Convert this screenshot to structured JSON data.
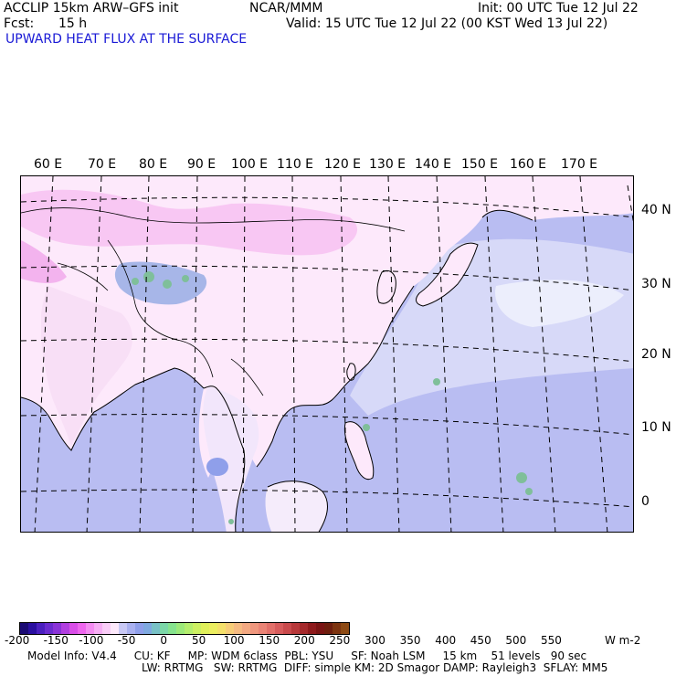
{
  "header": {
    "model": "ACCLIP 15km ARW–GFS init",
    "org": "NCAR/MMM",
    "init": "Init: 00 UTC Tue 12 Jul 22",
    "fcst_label": "Fcst:",
    "fcst_value": "15 h",
    "valid": "Valid: 15 UTC Tue 12 Jul 22 (00 KST Wed 13 Jul 22)",
    "field_title": "UPWARD HEAT FLUX AT THE SURFACE"
  },
  "colors": {
    "title_blue": "#1a1ad6",
    "ocean": "#b9bdf2",
    "land_light": "#fde9fb",
    "land_pink": "#f8c7f3",
    "green_patch": "#7fbf9a",
    "grid_dash": "#000000"
  },
  "map": {
    "lon_labels": [
      "60 E",
      "70 E",
      "80 E",
      "90 E",
      "100 E",
      "110 E",
      "120 E",
      "130 E",
      "140 E",
      "150 E",
      "160 E",
      "170 E"
    ],
    "lat_labels": [
      "40 N",
      "30 N",
      "20 N",
      "10 N",
      "0"
    ]
  },
  "colorbar": {
    "colors": [
      "#1a0a73",
      "#2a0fa0",
      "#4a1fbf",
      "#6a2bd0",
      "#8a33d8",
      "#b13fe0",
      "#d94ee8",
      "#ee66ee",
      "#f48cf2",
      "#f7aef5",
      "#facdf8",
      "#fde9fb",
      "#c9c9f5",
      "#aab1f0",
      "#8f9fea",
      "#7fa9e0",
      "#78c1c6",
      "#7bd7a8",
      "#86e38e",
      "#9ce97a",
      "#b5ee6e",
      "#cdf062",
      "#e0f05a",
      "#ecee60",
      "#f4e06a",
      "#f7cd78",
      "#f6bb82",
      "#f3a982",
      "#ef977e",
      "#ea8476",
      "#e2706a",
      "#d75c5c",
      "#c94a4c",
      "#b8393b",
      "#a4292b",
      "#8e1a1c",
      "#7a1414",
      "#6e1e0e",
      "#7d3410",
      "#8d4a14"
    ],
    "ticks": [
      "-200",
      "-150",
      "-100",
      "-50",
      "0",
      "50",
      "100",
      "150",
      "200",
      "250",
      "300",
      "350",
      "400",
      "450",
      "500",
      "550"
    ],
    "units": "W m-2"
  },
  "footer": {
    "line1": "Model Info: V4.4     CU: KF     MP: WDM 6class  PBL: YSU     SF: Noah LSM     15 km    51 levels   90 sec",
    "line2": "LW: RRTMG   SW: RRTMG  DIFF: simple KM: 2D Smagor DAMP: Rayleigh3  SFLAY: MM5"
  }
}
